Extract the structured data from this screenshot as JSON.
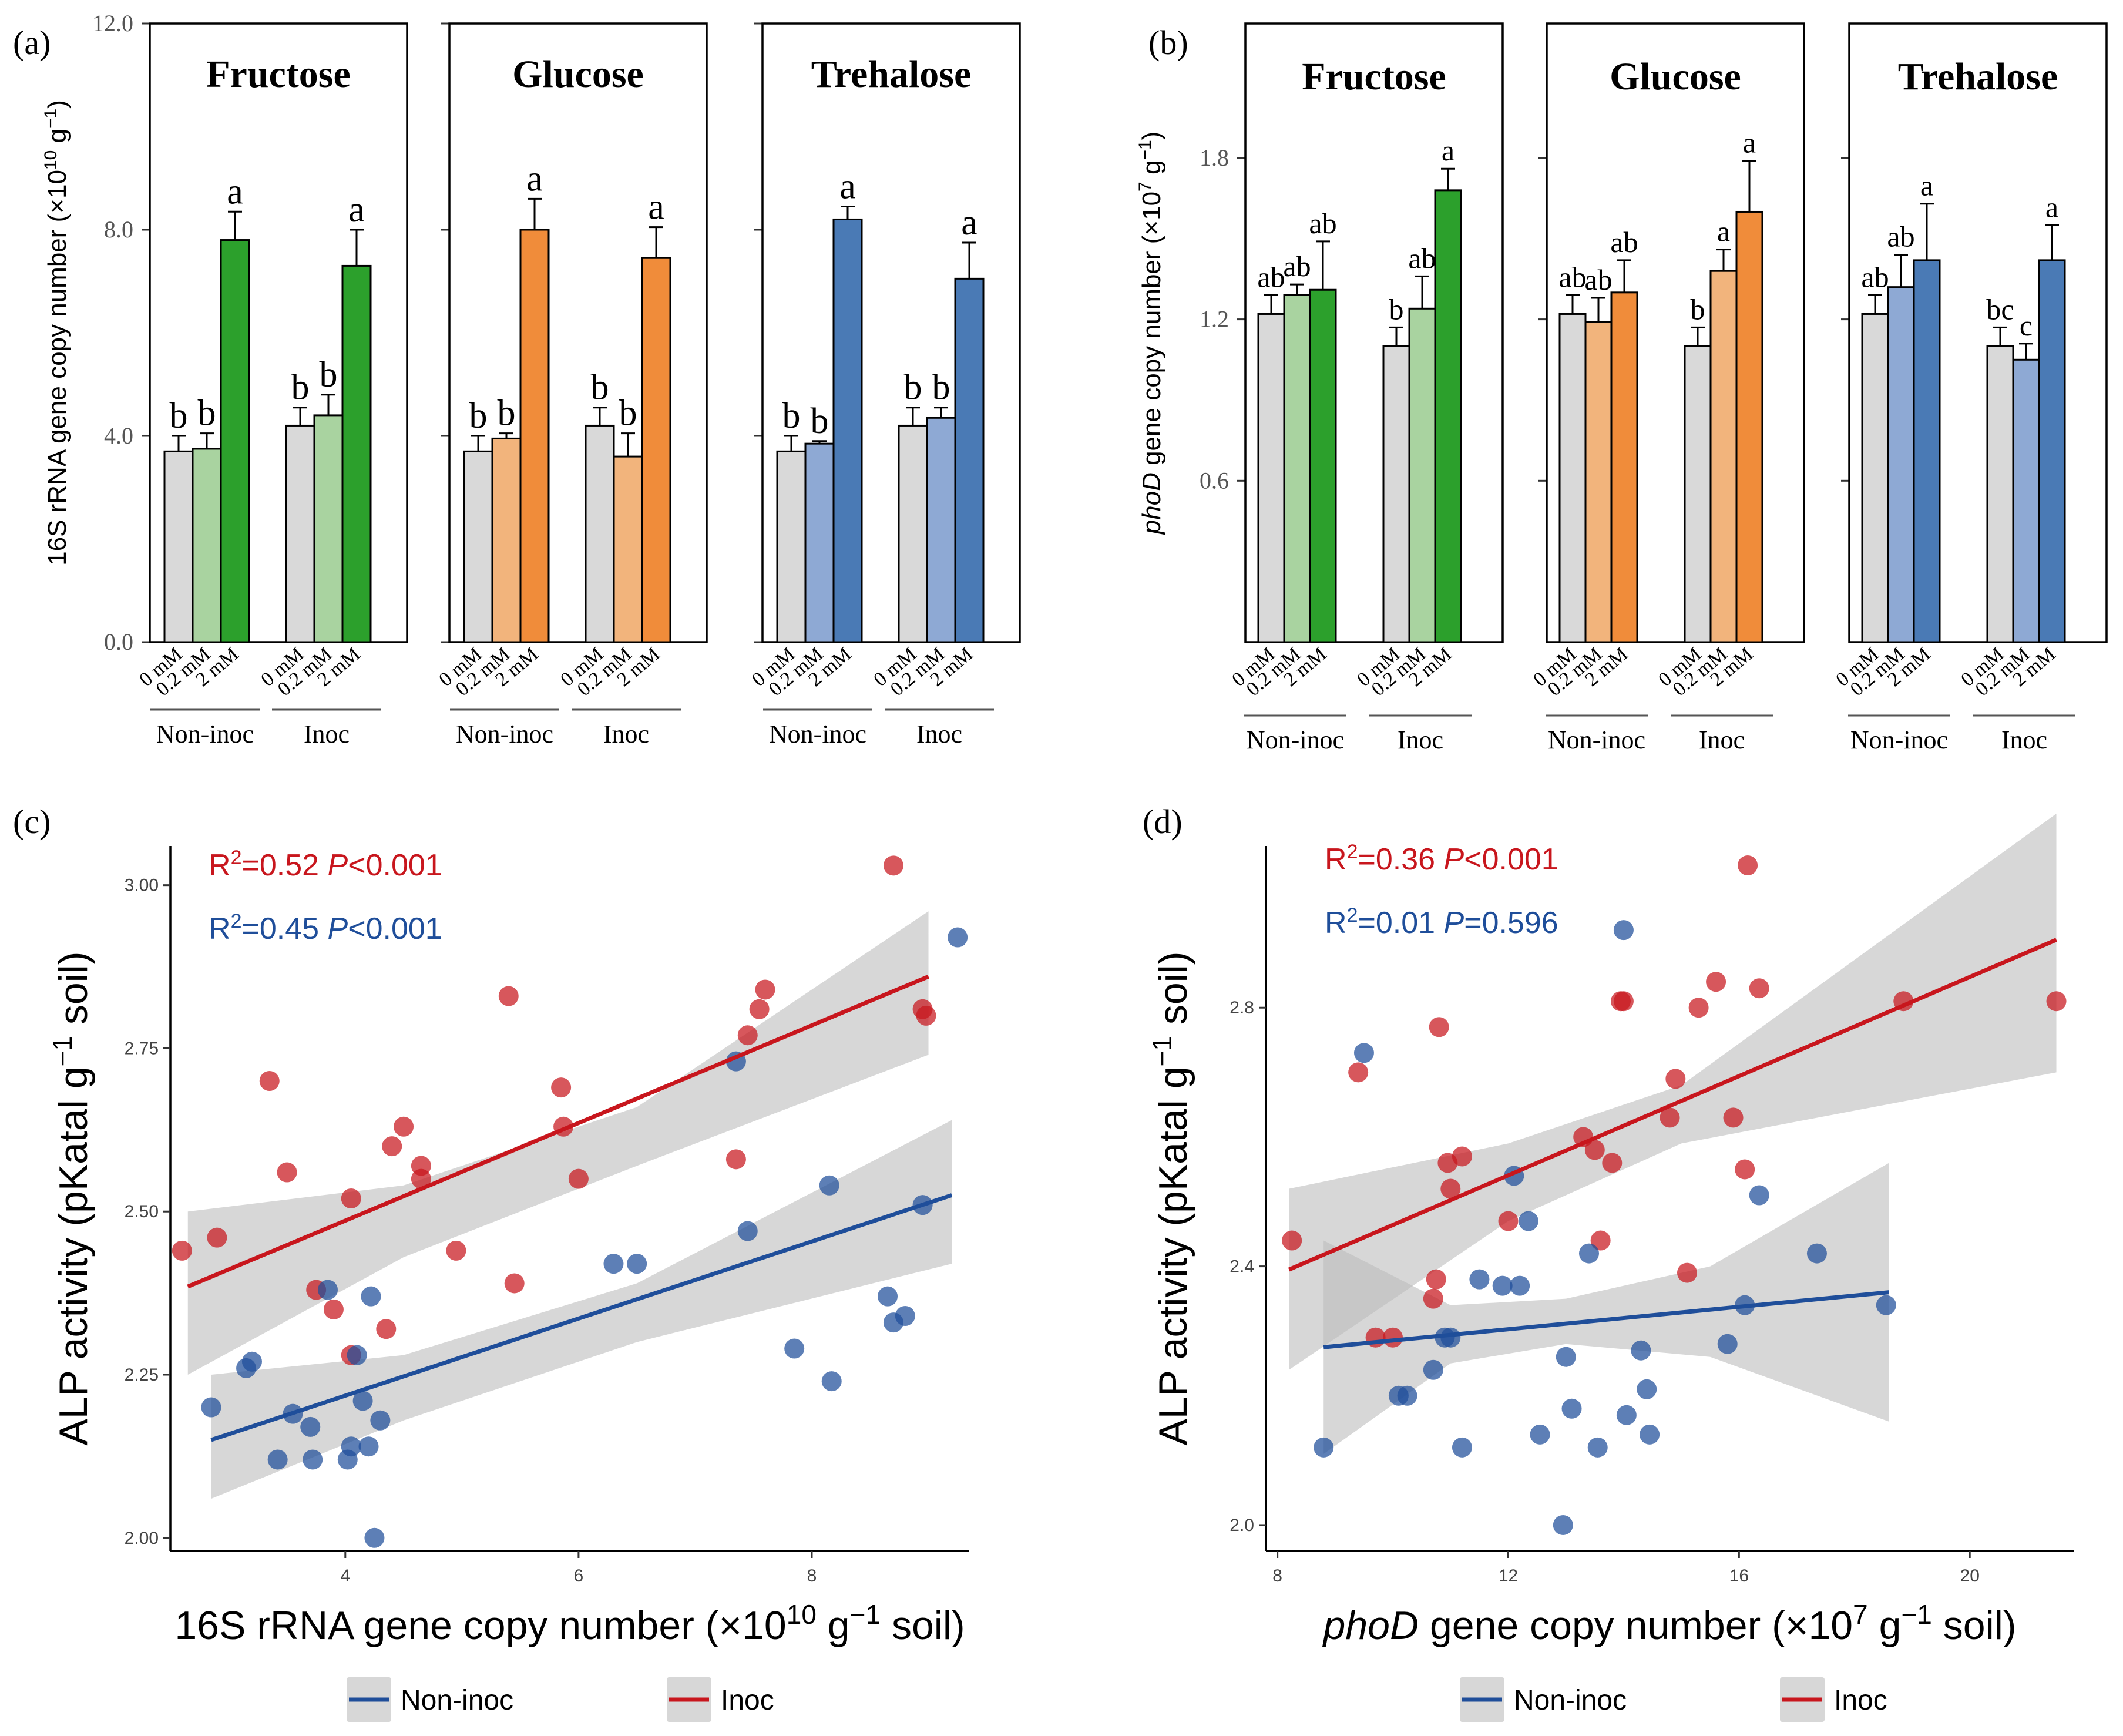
{
  "figure": {
    "legend": {
      "items": [
        {
          "label": "Non-inoc",
          "color": "#1f4e9a"
        },
        {
          "label": "Inoc",
          "color": "#c8161d"
        }
      ]
    }
  },
  "colors": {
    "grey": "#d9d9d9",
    "fructose_light": "#a9d3a0",
    "fructose_dark": "#2ca02c",
    "glucose_light": "#f2b47c",
    "glucose_dark": "#f08c3a",
    "trehalose_light": "#8ea9d4",
    "trehalose_dark": "#4a7ab5",
    "inoc": "#c8161d",
    "noninoc": "#1f4e9a",
    "ribbon": "#bdbdbd"
  },
  "chart_data": [
    {
      "id": "a",
      "type": "bar",
      "panel_label": "(a)",
      "ylabel_parts": [
        "16S rRNA gene copy number (×10",
        "10",
        " g",
        "−1",
        ")"
      ],
      "ylim": [
        0,
        12.0
      ],
      "yticks": [
        "0.0",
        "4.0",
        "8.0",
        "12.0"
      ],
      "yticks_values": [
        0,
        4,
        8,
        12
      ],
      "bar_labels": [
        "0 mM",
        "0.2 mM",
        "2 mM"
      ],
      "groups": [
        "Non-inoc",
        "Inoc"
      ],
      "facets": [
        {
          "title": "Fructose",
          "colors": [
            "grey",
            "fructose_light",
            "fructose_dark"
          ],
          "values": [
            [
              3.7,
              3.75,
              7.8
            ],
            [
              4.2,
              4.4,
              7.3
            ]
          ],
          "errors": [
            [
              0.3,
              0.3,
              0.55
            ],
            [
              0.35,
              0.4,
              0.7
            ]
          ],
          "letters": [
            [
              "b",
              "b",
              "a"
            ],
            [
              "b",
              "b",
              "a"
            ]
          ]
        },
        {
          "title": "Glucose",
          "colors": [
            "grey",
            "glucose_light",
            "glucose_dark"
          ],
          "values": [
            [
              3.7,
              3.95,
              8.0
            ],
            [
              4.2,
              3.6,
              7.45
            ]
          ],
          "errors": [
            [
              0.3,
              0.1,
              0.6
            ],
            [
              0.35,
              0.45,
              0.6
            ]
          ],
          "letters": [
            [
              "b",
              "b",
              "a"
            ],
            [
              "b",
              "b",
              "a"
            ]
          ]
        },
        {
          "title": "Trehalose",
          "colors": [
            "grey",
            "trehalose_light",
            "trehalose_dark"
          ],
          "values": [
            [
              3.7,
              3.85,
              8.2
            ],
            [
              4.2,
              4.35,
              7.05
            ]
          ],
          "errors": [
            [
              0.3,
              0.05,
              0.25
            ],
            [
              0.35,
              0.2,
              0.7
            ]
          ],
          "letters": [
            [
              "b",
              "b",
              "a"
            ],
            [
              "b",
              "b",
              "a"
            ]
          ]
        }
      ]
    },
    {
      "id": "b",
      "type": "bar",
      "panel_label": "(b)",
      "ylabel_parts": [
        "phoD",
        " gene copy number (×10",
        "7",
        " g",
        "−1",
        ")"
      ],
      "ylim": [
        0,
        2.3
      ],
      "yticks": [
        "0.6",
        "1.2",
        "1.8"
      ],
      "yticks_values": [
        0.6,
        1.2,
        1.8
      ],
      "bar_labels": [
        "0 mM",
        "0.2 mM",
        "2 mM"
      ],
      "groups": [
        "Non-inoc",
        "Inoc"
      ],
      "facets": [
        {
          "title": "Fructose",
          "colors": [
            "grey",
            "fructose_light",
            "fructose_dark"
          ],
          "values": [
            [
              1.22,
              1.29,
              1.31
            ],
            [
              1.1,
              1.24,
              1.68
            ]
          ],
          "errors": [
            [
              0.07,
              0.04,
              0.18
            ],
            [
              0.07,
              0.12,
              0.08
            ]
          ],
          "letters": [
            [
              "ab",
              "ab",
              "ab"
            ],
            [
              "b",
              "ab",
              "a"
            ]
          ]
        },
        {
          "title": "Glucose",
          "colors": [
            "grey",
            "glucose_light",
            "glucose_dark"
          ],
          "values": [
            [
              1.22,
              1.19,
              1.3
            ],
            [
              1.1,
              1.38,
              1.6
            ]
          ],
          "errors": [
            [
              0.07,
              0.09,
              0.12
            ],
            [
              0.07,
              0.08,
              0.19
            ]
          ],
          "letters": [
            [
              "ab",
              "ab",
              "ab"
            ],
            [
              "b",
              "a",
              "a"
            ]
          ]
        },
        {
          "title": "Trehalose",
          "colors": [
            "grey",
            "trehalose_light",
            "trehalose_dark"
          ],
          "values": [
            [
              1.22,
              1.32,
              1.42
            ],
            [
              1.1,
              1.05,
              1.42
            ]
          ],
          "errors": [
            [
              0.07,
              0.12,
              0.21
            ],
            [
              0.07,
              0.06,
              0.13
            ]
          ],
          "letters": [
            [
              "ab",
              "ab",
              "a"
            ],
            [
              "bc",
              "c",
              "a"
            ]
          ]
        }
      ]
    },
    {
      "id": "c",
      "type": "scatter",
      "panel_label": "(c)",
      "xlabel_parts": [
        "16S rRNA gene copy number (×10",
        "10",
        " g",
        "−1",
        " soil)"
      ],
      "ylabel_parts": [
        "ALP activity (pKatal g",
        "−1",
        " soil)"
      ],
      "xlim": [
        2.5,
        9.35
      ],
      "ylim": [
        1.98,
        3.06
      ],
      "xticks": [
        4,
        6,
        8
      ],
      "yticks": [
        2.0,
        2.25,
        2.5,
        2.75,
        3.0
      ],
      "ytick_labels": [
        "2.00",
        "2.25",
        "2.50",
        "2.75",
        "3.00"
      ],
      "stats": [
        {
          "series": "Inoc",
          "r2": "0.52",
          "p": "0.001",
          "op": "<"
        },
        {
          "series": "Non-inoc",
          "r2": "0.45",
          "p": "0.001",
          "op": "<"
        }
      ],
      "series": [
        {
          "name": "Inoc",
          "color": "inoc",
          "fit": {
            "x": [
              2.65,
              9.0
            ],
            "y": [
              2.385,
              2.86
            ]
          },
          "band": {
            "x": [
              2.65,
              4.5,
              6.5,
              9.0
            ],
            "lo": [
              2.25,
              2.43,
              2.57,
              2.74
            ],
            "hi": [
              2.5,
              2.54,
              2.66,
              2.96
            ]
          },
          "x": [
            2.6,
            2.9,
            3.35,
            3.5,
            3.75,
            3.9,
            4.05,
            4.05,
            4.35,
            4.4,
            4.5,
            4.65,
            4.65,
            4.95,
            5.4,
            5.45,
            5.85,
            5.87,
            6.0,
            7.35,
            7.45,
            7.55,
            7.6,
            8.7,
            8.95,
            8.98
          ],
          "y": [
            2.44,
            2.46,
            2.7,
            2.56,
            2.38,
            2.35,
            2.52,
            2.28,
            2.32,
            2.6,
            2.63,
            2.57,
            2.55,
            2.44,
            2.83,
            2.39,
            2.69,
            2.63,
            2.55,
            2.58,
            2.77,
            2.81,
            2.84,
            3.03,
            2.81,
            2.8
          ]
        },
        {
          "name": "Non-inoc",
          "color": "noninoc",
          "fit": {
            "x": [
              2.85,
              9.2
            ],
            "y": [
              2.15,
              2.525
            ]
          },
          "band": {
            "x": [
              2.85,
              4.5,
              6.5,
              9.2
            ],
            "lo": [
              2.06,
              2.18,
              2.3,
              2.42
            ],
            "hi": [
              2.25,
              2.28,
              2.39,
              2.64
            ]
          },
          "x": [
            2.85,
            3.15,
            3.2,
            3.42,
            3.55,
            3.7,
            3.72,
            3.85,
            4.02,
            4.05,
            4.1,
            4.15,
            4.2,
            4.22,
            4.25,
            4.3,
            6.3,
            6.5,
            7.35,
            7.45,
            7.85,
            8.15,
            8.17,
            8.65,
            8.7,
            8.8,
            8.95,
            9.25
          ],
          "y": [
            2.2,
            2.26,
            2.27,
            2.12,
            2.19,
            2.17,
            2.12,
            2.38,
            2.12,
            2.14,
            2.28,
            2.21,
            2.14,
            2.37,
            2.0,
            2.18,
            2.42,
            2.42,
            2.73,
            2.47,
            2.29,
            2.54,
            2.24,
            2.37,
            2.33,
            2.34,
            2.51,
            2.92
          ]
        }
      ]
    },
    {
      "id": "d",
      "type": "scatter",
      "panel_label": "(d)",
      "xlabel_parts": [
        "phoD",
        " gene copy number (×10",
        "7",
        " g",
        "−1",
        " soil)"
      ],
      "ylabel_parts": [
        "ALP activity (pKatal g",
        "−1",
        " soil)"
      ],
      "xlim": [
        7.8,
        21.8
      ],
      "ylim": [
        1.96,
        3.05
      ],
      "xticks": [
        8,
        12,
        16,
        20
      ],
      "yticks": [
        2.0,
        2.4,
        2.8
      ],
      "ytick_labels": [
        "2.0",
        "2.4",
        "2.8"
      ],
      "stats": [
        {
          "series": "Inoc",
          "r2": "0.36",
          "p": "0.001",
          "op": "<"
        },
        {
          "series": "Non-inoc",
          "r2": "0.01",
          "p": "0.596",
          "op": "="
        }
      ],
      "series": [
        {
          "name": "Inoc",
          "color": "inoc",
          "fit": {
            "x": [
              8.2,
              21.5
            ],
            "y": [
              2.395,
              2.905
            ]
          },
          "band": {
            "x": [
              8.2,
              12.0,
              15.0,
              21.5
            ],
            "lo": [
              2.24,
              2.47,
              2.59,
              2.7
            ],
            "hi": [
              2.52,
              2.59,
              2.68,
              3.1
            ]
          },
          "x": [
            8.25,
            9.4,
            9.7,
            10.0,
            10.7,
            10.75,
            10.8,
            10.95,
            11.0,
            11.2,
            12.0,
            13.3,
            13.5,
            13.6,
            13.8,
            13.95,
            14.0,
            14.8,
            14.9,
            15.1,
            15.3,
            15.6,
            15.9,
            16.1,
            16.15,
            16.35,
            18.85,
            21.5
          ],
          "y": [
            2.44,
            2.7,
            2.29,
            2.29,
            2.35,
            2.38,
            2.77,
            2.56,
            2.52,
            2.57,
            2.47,
            2.6,
            2.58,
            2.44,
            2.56,
            2.81,
            2.81,
            2.63,
            2.69,
            2.39,
            2.8,
            2.84,
            2.63,
            2.55,
            3.02,
            2.83,
            2.81,
            2.81
          ]
        },
        {
          "name": "Non-inoc",
          "color": "noninoc",
          "fit": {
            "x": [
              8.8,
              18.6
            ],
            "y": [
              2.275,
              2.36
            ]
          },
          "band": {
            "x": [
              8.8,
              11.0,
              13.0,
              15.5,
              18.6
            ],
            "lo": [
              2.11,
              2.25,
              2.28,
              2.26,
              2.16
            ],
            "hi": [
              2.44,
              2.34,
              2.35,
              2.4,
              2.56
            ]
          },
          "x": [
            8.8,
            9.5,
            10.1,
            10.25,
            10.7,
            10.9,
            11.0,
            11.2,
            11.5,
            11.9,
            12.1,
            12.2,
            12.35,
            12.55,
            12.95,
            13.0,
            13.1,
            13.4,
            13.55,
            14.0,
            14.05,
            14.3,
            14.4,
            14.45,
            15.8,
            16.1,
            16.35,
            17.35,
            18.55
          ],
          "y": [
            2.12,
            2.73,
            2.2,
            2.2,
            2.24,
            2.29,
            2.29,
            2.12,
            2.38,
            2.37,
            2.54,
            2.37,
            2.47,
            2.14,
            2.0,
            2.26,
            2.18,
            2.42,
            2.12,
            2.92,
            2.17,
            2.27,
            2.21,
            2.14,
            2.28,
            2.34,
            2.51,
            2.42,
            2.34
          ]
        }
      ]
    }
  ]
}
